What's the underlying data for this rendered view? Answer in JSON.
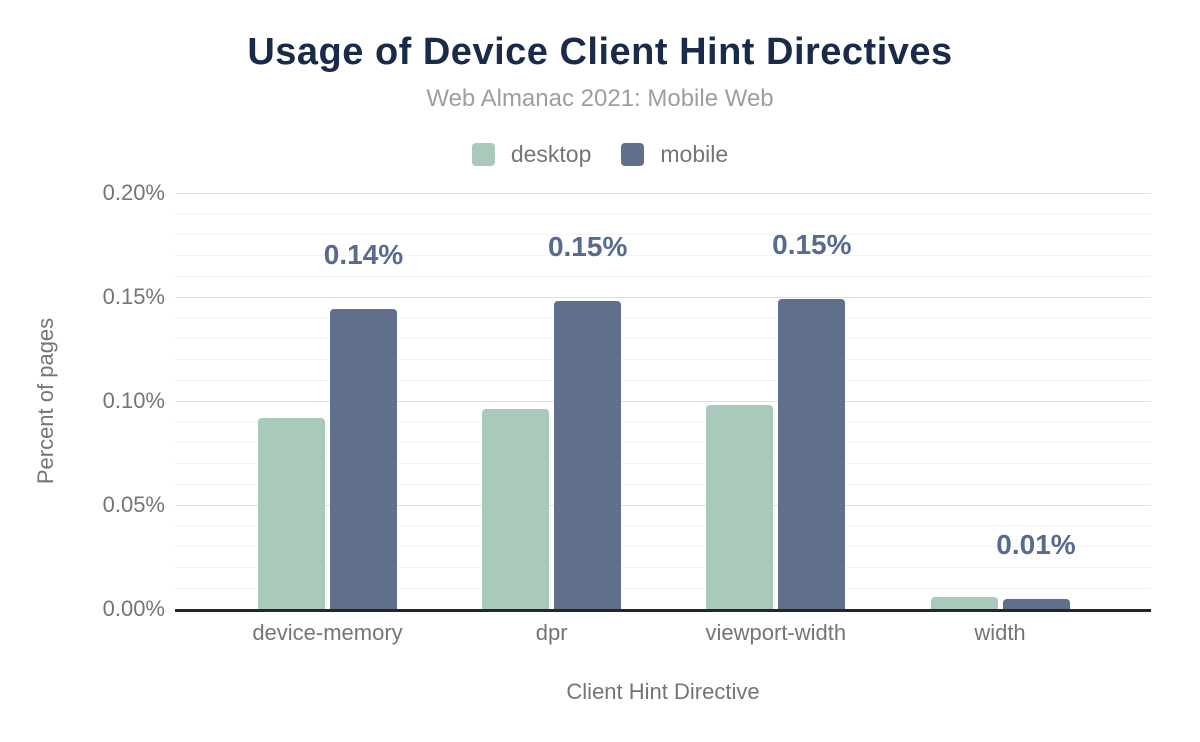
{
  "chart_data": {
    "type": "bar",
    "title": "Usage of Device Client Hint Directives",
    "subtitle": "Web Almanac 2021: Mobile Web",
    "categories": [
      "device-memory",
      "dpr",
      "viewport-width",
      "width"
    ],
    "series": [
      {
        "name": "desktop",
        "color": "#a9caba",
        "values": [
          0.092,
          0.096,
          0.098,
          0.006
        ]
      },
      {
        "name": "mobile",
        "color": "#5f6f8c",
        "values": [
          0.144,
          0.148,
          0.149,
          0.005
        ]
      }
    ],
    "bar_labels": {
      "on_series": "mobile",
      "texts": [
        "0.14%",
        "0.15%",
        "0.15%",
        "0.01%"
      ]
    },
    "xlabel": "Client Hint Directive",
    "ylabel": "Percent of pages",
    "ylim_pct": [
      0,
      0.2
    ],
    "y_ticks": [
      {
        "value": 0.0,
        "label": "0.00%"
      },
      {
        "value": 0.05,
        "label": "0.05%"
      },
      {
        "value": 0.1,
        "label": "0.10%"
      },
      {
        "value": 0.15,
        "label": "0.15%"
      },
      {
        "value": 0.2,
        "label": "0.20%"
      }
    ],
    "y_minor_step": 0.01,
    "y_major_step": 0.05,
    "grid": true,
    "legend_position": "top",
    "colors": {
      "title": "#1a2b49",
      "subtitle": "#9e9e9e",
      "axis_text": "#757575",
      "bar_label": "#566b8f",
      "axis_line": "#262626",
      "grid_major": "#e0e0e0",
      "grid_minor": "#f3f3f3"
    }
  }
}
